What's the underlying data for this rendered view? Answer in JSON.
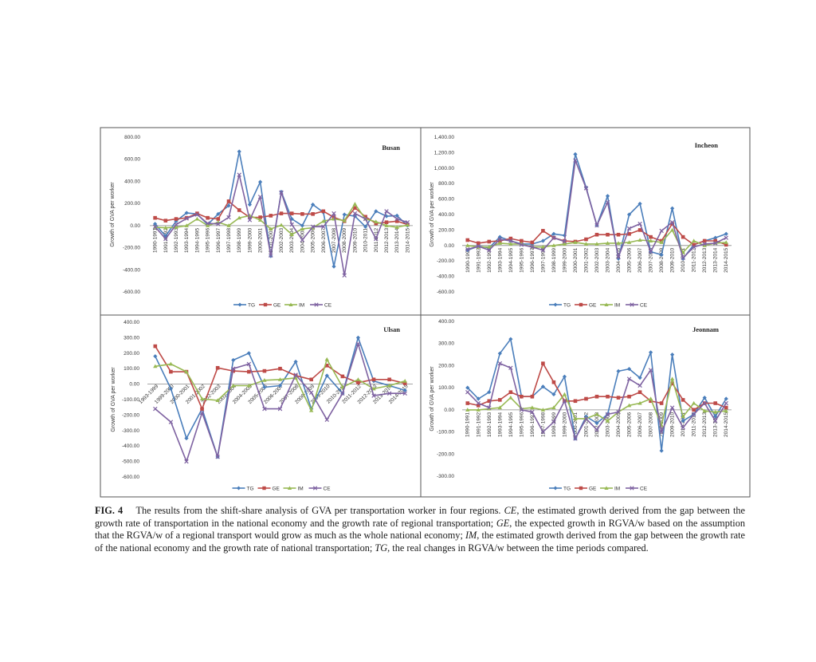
{
  "categories_a": [
    "1990-1991",
    "1991-1992",
    "1992-1993",
    "1993-1994",
    "1994-1995",
    "1995-1996",
    "1996-1997",
    "1997-1998",
    "1998-1999",
    "1999-2000",
    "2000-2001",
    "2001-2002",
    "2002-2003",
    "2003-2004",
    "2004-2005",
    "2005-2006",
    "2006-2007",
    "2007-2008",
    "2008-2009",
    "2009-2010",
    "2010-2011",
    "2011-2012",
    "2012-2013",
    "2013-2014",
    "2014-2015"
  ],
  "categories_b": [
    "1993-1999",
    "1999-2000",
    "2000-2001",
    "2001-2002",
    "2002-2003",
    "2003-2004",
    "2004-2005",
    "2005-2006",
    "2006-2007",
    "2007-2008",
    "2008-2009",
    "2009-2010",
    "2010-2011",
    "2011-2012",
    "2012-2013",
    "2013-2014",
    "2014-2015"
  ],
  "legend": [
    "TG",
    "GE",
    "IM",
    "CE"
  ],
  "colors": {
    "TG": "#4a7ebb",
    "GE": "#be4b48",
    "IM": "#98b954",
    "CE": "#7e62a1"
  },
  "chart_data": [
    {
      "type": "line",
      "title": "Busan",
      "ylabel": "Growth of GVA per worker",
      "ylim": [
        -600,
        800
      ],
      "yticks": [
        "800.00",
        "600.00",
        "400.00",
        "200.00",
        "0.00",
        "-200.00",
        "-400.00",
        "-600.00"
      ],
      "series": [
        {
          "name": "TG",
          "values": [
            15,
            -95,
            40,
            115,
            105,
            10,
            105,
            180,
            670,
            190,
            395,
            -275,
            305,
            60,
            0,
            190,
            120,
            -370,
            100,
            85,
            -10,
            130,
            85,
            90,
            0
          ]
        },
        {
          "name": "GE",
          "values": [
            70,
            45,
            60,
            70,
            110,
            70,
            60,
            220,
            140,
            75,
            75,
            90,
            110,
            110,
            105,
            105,
            130,
            75,
            40,
            160,
            80,
            20,
            30,
            40,
            10
          ]
        },
        {
          "name": "IM",
          "values": [
            -15,
            -20,
            -15,
            0,
            60,
            0,
            30,
            0,
            70,
            90,
            50,
            -30,
            5,
            -80,
            -30,
            -20,
            40,
            60,
            45,
            195,
            60,
            35,
            0,
            -15,
            5
          ]
        },
        {
          "name": "CE",
          "values": [
            -10,
            -120,
            10,
            65,
            100,
            20,
            15,
            75,
            460,
            50,
            260,
            -270,
            300,
            10,
            -130,
            -10,
            -10,
            110,
            -450,
            110,
            60,
            -120,
            130,
            60,
            30
          ]
        }
      ]
    },
    {
      "type": "line",
      "title": "Incheon",
      "ylabel": "Growth of GVA per worker",
      "ylim": [
        -600,
        1400
      ],
      "yticks": [
        "1,400.00",
        "1,200.00",
        "1,000.00",
        "800.00",
        "600.00",
        "400.00",
        "200.00",
        "0.00",
        "-200.00",
        "-400.00",
        "-600.00"
      ],
      "series": [
        {
          "name": "TG",
          "values": [
            -60,
            -10,
            -30,
            110,
            60,
            20,
            20,
            60,
            150,
            130,
            1180,
            750,
            260,
            640,
            -170,
            400,
            540,
            -80,
            -120,
            480,
            -170,
            10,
            60,
            100,
            150
          ]
        },
        {
          "name": "GE",
          "values": [
            70,
            30,
            50,
            60,
            90,
            60,
            40,
            190,
            100,
            60,
            50,
            80,
            140,
            140,
            140,
            150,
            200,
            110,
            60,
            280,
            110,
            10,
            60,
            60,
            10
          ]
        },
        {
          "name": "IM",
          "values": [
            0,
            -20,
            -20,
            30,
            20,
            20,
            -20,
            -20,
            0,
            20,
            40,
            20,
            20,
            30,
            30,
            40,
            70,
            60,
            40,
            200,
            -90,
            60,
            0,
            30,
            40
          ]
        },
        {
          "name": "CE",
          "values": [
            -50,
            -10,
            -60,
            80,
            60,
            10,
            -20,
            -60,
            100,
            50,
            1100,
            740,
            260,
            560,
            -150,
            220,
            280,
            -80,
            190,
            300,
            -160,
            -20,
            20,
            30,
            100
          ]
        }
      ]
    },
    {
      "type": "line",
      "title": "Ulsan",
      "ylabel": "Growth of GVA per worker",
      "ylim": [
        -600,
        400
      ],
      "yticks": [
        "400.00",
        "300.00",
        "200.00",
        "100.00",
        "0.00",
        "-100.00",
        "-200.00",
        "-300.00",
        "-400.00",
        "-500.00",
        "-600.00"
      ],
      "series": [
        {
          "name": "TG",
          "values": [
            180,
            -30,
            -350,
            -160,
            -470,
            155,
            200,
            -20,
            -10,
            145,
            -160,
            55,
            -60,
            300,
            20,
            -10,
            -40
          ]
        },
        {
          "name": "GE",
          "values": [
            245,
            80,
            80,
            -160,
            105,
            85,
            80,
            85,
            100,
            55,
            30,
            120,
            50,
            10,
            30,
            30,
            5
          ]
        },
        {
          "name": "IM",
          "values": [
            115,
            130,
            80,
            -95,
            -105,
            -10,
            -10,
            25,
            30,
            40,
            -170,
            160,
            -20,
            30,
            -30,
            -10,
            20
          ]
        },
        {
          "name": "CE",
          "values": [
            -160,
            -245,
            -500,
            -185,
            -470,
            100,
            130,
            -160,
            -160,
            60,
            -55,
            -230,
            -60,
            260,
            -75,
            -60,
            -60
          ]
        }
      ]
    },
    {
      "type": "line",
      "title": "Jeonnam",
      "ylabel": "Growth of GVA per worker",
      "ylim": [
        -300,
        400
      ],
      "yticks": [
        "400.00",
        "300.00",
        "200.00",
        "100.00",
        "0.00",
        "-100.00",
        "-200.00",
        "-300.00"
      ],
      "series": [
        {
          "name": "TG",
          "values": [
            100,
            50,
            80,
            255,
            320,
            60,
            60,
            105,
            70,
            150,
            -130,
            -30,
            -60,
            -20,
            175,
            185,
            145,
            260,
            -185,
            250,
            -50,
            -20,
            55,
            -30,
            50
          ]
        },
        {
          "name": "GE",
          "values": [
            30,
            20,
            40,
            45,
            80,
            60,
            60,
            210,
            125,
            40,
            40,
            50,
            60,
            60,
            55,
            60,
            80,
            40,
            30,
            120,
            45,
            0,
            30,
            30,
            10
          ]
        },
        {
          "name": "IM",
          "values": [
            0,
            0,
            5,
            10,
            55,
            5,
            10,
            0,
            10,
            70,
            -40,
            -40,
            -20,
            -50,
            -10,
            20,
            30,
            50,
            -70,
            140,
            -30,
            30,
            -5,
            -10,
            -5
          ]
        },
        {
          "name": "CE",
          "values": [
            80,
            30,
            10,
            210,
            190,
            0,
            -10,
            -100,
            -55,
            40,
            -130,
            -40,
            -90,
            -20,
            -10,
            140,
            110,
            180,
            -100,
            10,
            -80,
            -20,
            30,
            -50,
            30
          ]
        }
      ]
    }
  ],
  "caption": {
    "label": "FIG. 4",
    "text1": "The results from the shift-share analysis of GVA per transportation worker in four regions. ",
    "ce": "CE",
    "text2": ", the estimated growth derived from the gap between the growth rate of transportation in the national economy and the growth rate of regional transportation; ",
    "ge": "GE",
    "text3": ", the expected growth in RGVA/w based on the assumption that the RGVA/w of a regional transport would grow as much as the whole national economy; ",
    "im": "IM",
    "text4": ", the estimated growth derived from the gap between the growth rate of the national economy and the growth rate of national transportation; ",
    "tg": "TG",
    "text5": ", the real changes in RGVA/w between the time periods compared."
  }
}
